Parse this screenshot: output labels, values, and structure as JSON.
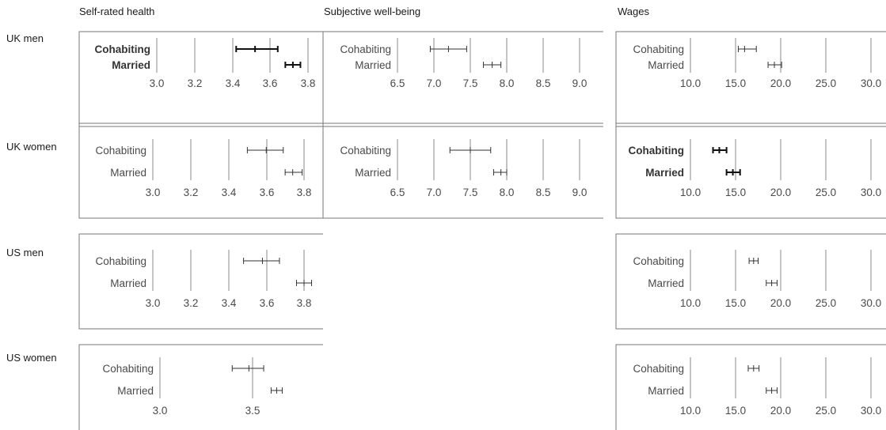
{
  "columns": [
    "Self-rated health",
    "Subjective well-being",
    "Wages"
  ],
  "rows": [
    "UK men",
    "UK women",
    "US men",
    "US women"
  ],
  "chart_data": [
    {
      "type": "errorbar",
      "row": "UK men",
      "column": "Self-rated health",
      "categories": [
        "Cohabiting",
        "Married"
      ],
      "bold": true,
      "ticks": [
        "3.0",
        "3.2",
        "3.4",
        "3.6",
        "3.8"
      ],
      "xlim": [
        3.0,
        3.8
      ],
      "series": [
        {
          "category": "Cohabiting",
          "estimate": 3.52,
          "low": 3.42,
          "high": 3.64
        },
        {
          "category": "Married",
          "estimate": 3.72,
          "low": 3.68,
          "high": 3.76
        }
      ]
    },
    {
      "type": "errorbar",
      "row": "UK men",
      "column": "Subjective well-being",
      "categories": [
        "Cohabiting",
        "Married"
      ],
      "bold": false,
      "ticks": [
        "6.5",
        "7.0",
        "7.5",
        "8.0",
        "8.5",
        "9.0"
      ],
      "xlim": [
        6.5,
        9.0
      ],
      "series": [
        {
          "category": "Cohabiting",
          "estimate": 7.2,
          "low": 6.95,
          "high": 7.45
        },
        {
          "category": "Married",
          "estimate": 7.8,
          "low": 7.68,
          "high": 7.92
        }
      ]
    },
    {
      "type": "errorbar",
      "row": "UK men",
      "column": "Wages",
      "categories": [
        "Cohabiting",
        "Married"
      ],
      "bold": false,
      "ticks": [
        "10.0",
        "15.0",
        "20.0",
        "25.0",
        "30.0"
      ],
      "xlim": [
        10.0,
        30.0
      ],
      "series": [
        {
          "category": "Cohabiting",
          "estimate": 16.0,
          "low": 15.3,
          "high": 17.3
        },
        {
          "category": "Married",
          "estimate": 19.3,
          "low": 18.6,
          "high": 20.1
        }
      ]
    },
    {
      "type": "errorbar",
      "row": "UK women",
      "column": "Self-rated health",
      "categories": [
        "Cohabiting",
        "Married"
      ],
      "bold": false,
      "ticks": [
        "3.0",
        "3.2",
        "3.4",
        "3.6",
        "3.8"
      ],
      "xlim": [
        3.0,
        3.8
      ],
      "series": [
        {
          "category": "Cohabiting",
          "estimate": 3.6,
          "low": 3.5,
          "high": 3.69
        },
        {
          "category": "Married",
          "estimate": 3.74,
          "low": 3.7,
          "high": 3.79
        }
      ]
    },
    {
      "type": "errorbar",
      "row": "UK women",
      "column": "Subjective well-being",
      "categories": [
        "Cohabiting",
        "Married"
      ],
      "bold": false,
      "ticks": [
        "6.5",
        "7.0",
        "7.5",
        "8.0",
        "8.5",
        "9.0"
      ],
      "xlim": [
        6.5,
        9.0
      ],
      "series": [
        {
          "category": "Cohabiting",
          "estimate": 7.5,
          "low": 7.22,
          "high": 7.78
        },
        {
          "category": "Married",
          "estimate": 7.92,
          "low": 7.82,
          "high": 8.0
        }
      ]
    },
    {
      "type": "errorbar",
      "row": "UK women",
      "column": "Wages",
      "categories": [
        "Cohabiting",
        "Married"
      ],
      "bold": true,
      "ticks": [
        "10.0",
        "15.0",
        "20.0",
        "25.0",
        "30.0"
      ],
      "xlim": [
        10.0,
        30.0
      ],
      "series": [
        {
          "category": "Cohabiting",
          "estimate": 13.2,
          "low": 12.5,
          "high": 14.0
        },
        {
          "category": "Married",
          "estimate": 14.7,
          "low": 14.0,
          "high": 15.5
        }
      ]
    },
    {
      "type": "errorbar",
      "row": "US men",
      "column": "Self-rated health",
      "categories": [
        "Cohabiting",
        "Married"
      ],
      "bold": false,
      "ticks": [
        "3.0",
        "3.2",
        "3.4",
        "3.6",
        "3.8"
      ],
      "xlim": [
        3.0,
        3.8
      ],
      "series": [
        {
          "category": "Cohabiting",
          "estimate": 3.58,
          "low": 3.48,
          "high": 3.67
        },
        {
          "category": "Married",
          "estimate": 3.8,
          "low": 3.76,
          "high": 3.84
        }
      ]
    },
    {
      "type": "errorbar",
      "row": "US men",
      "column": "Wages",
      "categories": [
        "Cohabiting",
        "Married"
      ],
      "bold": false,
      "ticks": [
        "10.0",
        "15.0",
        "20.0",
        "25.0",
        "30.0"
      ],
      "xlim": [
        10.0,
        30.0
      ],
      "series": [
        {
          "category": "Cohabiting",
          "estimate": 17.0,
          "low": 16.5,
          "high": 17.5
        },
        {
          "category": "Married",
          "estimate": 19.0,
          "low": 18.4,
          "high": 19.6
        }
      ]
    },
    {
      "type": "errorbar",
      "row": "US women",
      "column": "Self-rated health",
      "categories": [
        "Cohabiting",
        "Married"
      ],
      "bold": false,
      "ticks": [
        "3.0",
        "3.5"
      ],
      "xlim": [
        3.0,
        3.5
      ],
      "series": [
        {
          "category": "Cohabiting",
          "estimate": 3.48,
          "low": 3.39,
          "high": 3.56
        },
        {
          "category": "Married",
          "estimate": 3.63,
          "low": 3.6,
          "high": 3.66
        }
      ]
    },
    {
      "type": "errorbar",
      "row": "US women",
      "column": "Wages",
      "categories": [
        "Cohabiting",
        "Married"
      ],
      "bold": false,
      "ticks": [
        "10.0",
        "15.0",
        "20.0",
        "25.0",
        "30.0"
      ],
      "xlim": [
        10.0,
        30.0
      ],
      "series": [
        {
          "category": "Cohabiting",
          "estimate": 17.0,
          "low": 16.4,
          "high": 17.6
        },
        {
          "category": "Married",
          "estimate": 19.0,
          "low": 18.4,
          "high": 19.6
        }
      ]
    }
  ]
}
